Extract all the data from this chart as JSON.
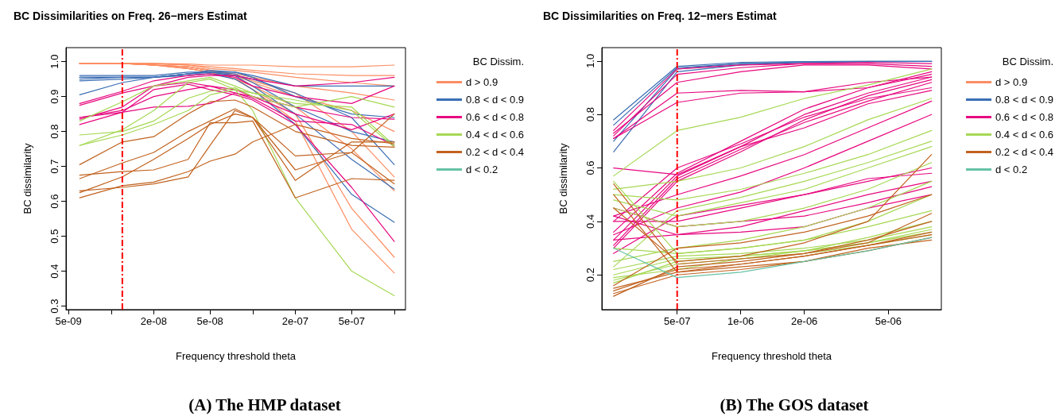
{
  "chart_data": [
    {
      "type": "line",
      "title": "BC Dissimilarities on Freq. 26−mers Estimat",
      "xlabel": "Frequency threshold theta",
      "ylabel": "BC dissimilarity",
      "legend_title": "BC Dissim.",
      "annotations": [
        "(A) The HMP dataset"
      ],
      "log": "x",
      "legend": "right",
      "marker": "none",
      "x": [
        6e-09,
        1.2e-08,
        2e-08,
        3.5e-08,
        5e-08,
        7.5e-08,
        1e-07,
        2e-07,
        5e-07,
        1e-06
      ],
      "xlim": [
        4.8e-09,
        1.2e-06
      ],
      "xticks": [
        {
          "value": 5e-09,
          "label": "5e-09"
        },
        {
          "value": 1e-08,
          "label": null
        },
        {
          "value": 2e-08,
          "label": "2e-08"
        },
        {
          "value": 5e-08,
          "label": "5e-08"
        },
        {
          "value": 1e-07,
          "label": null
        },
        {
          "value": 2e-07,
          "label": "2e-07"
        },
        {
          "value": 5e-07,
          "label": "5e-07"
        },
        {
          "value": 1e-06,
          "label": null
        }
      ],
      "ylim": [
        0.29,
        1.04
      ],
      "yticks": [
        0.3,
        0.4,
        0.5,
        0.6,
        0.7,
        0.8,
        0.9,
        {
          "value": 1,
          "label": "1.0"
        }
      ],
      "ref_lines": [
        {
          "axis": "x",
          "value": 1.2e-08,
          "color": "#ff0000",
          "line_style": "dashed"
        }
      ],
      "series": [
        {
          "name": "d > 0.9",
          "color": "#fc8d62",
          "values": [
            0.995,
            0.995,
            0.995,
            0.993,
            0.99,
            0.99,
            0.99,
            0.985,
            0.985,
            0.99
          ]
        },
        {
          "color": "#fc8d62",
          "values": [
            0.995,
            0.995,
            0.995,
            0.99,
            0.985,
            0.98,
            0.975,
            0.965,
            0.96,
            0.96
          ]
        },
        {
          "color": "#fc8d62",
          "values": [
            0.995,
            0.995,
            0.993,
            0.99,
            0.98,
            0.975,
            0.97,
            0.955,
            0.94,
            0.93
          ]
        },
        {
          "color": "#fc8d62",
          "values": [
            0.995,
            0.995,
            0.99,
            0.985,
            0.975,
            0.965,
            0.955,
            0.93,
            0.91,
            0.89
          ]
        },
        {
          "color": "#fc8d62",
          "values": [
            0.995,
            0.995,
            0.99,
            0.985,
            0.975,
            0.96,
            0.94,
            0.9,
            0.86,
            0.8
          ]
        },
        {
          "color": "#fc8d62",
          "values": [
            0.995,
            0.995,
            0.99,
            0.98,
            0.97,
            0.95,
            0.93,
            0.87,
            0.75,
            0.63
          ]
        },
        {
          "color": "#fc8d62",
          "values": [
            0.995,
            0.995,
            0.99,
            0.98,
            0.97,
            0.95,
            0.92,
            0.85,
            0.58,
            0.44
          ]
        },
        {
          "color": "#fc8d62",
          "values": [
            0.995,
            0.995,
            0.99,
            0.98,
            0.97,
            0.95,
            0.92,
            0.83,
            0.52,
            0.395
          ]
        },
        {
          "color": "#fc8d62",
          "values": [
            0.995,
            0.995,
            0.99,
            0.985,
            0.975,
            0.96,
            0.945,
            0.91,
            0.8,
            0.67
          ]
        },
        {
          "name": "0.8 < d < 0.9",
          "color": "#3b6eb4",
          "values": [
            0.95,
            0.955,
            0.955,
            0.965,
            0.97,
            0.97,
            0.96,
            0.93,
            0.93,
            0.93
          ]
        },
        {
          "color": "#3b6eb4",
          "values": [
            0.945,
            0.95,
            0.955,
            0.965,
            0.975,
            0.97,
            0.955,
            0.9,
            0.85,
            0.84
          ]
        },
        {
          "color": "#3b6eb4",
          "values": [
            0.96,
            0.96,
            0.96,
            0.97,
            0.97,
            0.965,
            0.94,
            0.87,
            0.8,
            0.77
          ]
        },
        {
          "color": "#3b6eb4",
          "values": [
            0.955,
            0.955,
            0.955,
            0.965,
            0.97,
            0.96,
            0.93,
            0.85,
            0.72,
            0.635
          ]
        },
        {
          "color": "#3b6eb4",
          "values": [
            0.905,
            0.94,
            0.955,
            0.965,
            0.965,
            0.95,
            0.92,
            0.82,
            0.62,
            0.54
          ]
        },
        {
          "color": "#3b6eb4",
          "values": [
            0.955,
            0.955,
            0.955,
            0.96,
            0.965,
            0.96,
            0.95,
            0.91,
            0.84,
            0.705
          ]
        },
        {
          "name": "0.6 < d < 0.8",
          "color": "#e7077f",
          "values": [
            0.84,
            0.855,
            0.87,
            0.872,
            0.88,
            0.91,
            0.9,
            0.87,
            0.84,
            0.835
          ]
        },
        {
          "color": "#e7077f",
          "values": [
            0.875,
            0.91,
            0.93,
            0.955,
            0.96,
            0.96,
            0.95,
            0.93,
            0.94,
            0.955
          ]
        },
        {
          "color": "#e7077f",
          "values": [
            0.88,
            0.915,
            0.945,
            0.96,
            0.965,
            0.955,
            0.93,
            0.9,
            0.88,
            0.93
          ]
        },
        {
          "color": "#e7077f",
          "values": [
            0.835,
            0.87,
            0.93,
            0.94,
            0.93,
            0.91,
            0.895,
            0.83,
            0.82,
            0.76
          ]
        },
        {
          "color": "#e7077f",
          "values": [
            0.82,
            0.855,
            0.92,
            0.935,
            0.92,
            0.905,
            0.89,
            0.82,
            0.64,
            0.485
          ]
        },
        {
          "color": "#e7077f",
          "values": [
            0.84,
            0.86,
            0.9,
            0.92,
            0.93,
            0.92,
            0.9,
            0.85,
            0.805,
            0.85
          ]
        },
        {
          "name": "0.4 < d < 0.6",
          "color": "#a6d854",
          "values": [
            0.76,
            0.805,
            0.86,
            0.94,
            0.95,
            0.92,
            0.86,
            0.61,
            0.4,
            0.33
          ]
        },
        {
          "color": "#a6d854",
          "values": [
            0.79,
            0.8,
            0.83,
            0.895,
            0.915,
            0.925,
            0.9,
            0.87,
            0.9,
            0.87
          ]
        },
        {
          "color": "#a6d854",
          "values": [
            0.76,
            0.79,
            0.82,
            0.86,
            0.905,
            0.92,
            0.91,
            0.88,
            0.87,
            0.76
          ]
        },
        {
          "color": "#a6d854",
          "values": [
            0.83,
            0.885,
            0.93,
            0.945,
            0.955,
            0.93,
            0.91,
            0.89,
            0.86,
            0.755
          ]
        },
        {
          "name": "0.2 < d < 0.4",
          "color": "#c1621f",
          "values": [
            0.705,
            0.77,
            0.785,
            0.85,
            0.885,
            0.89,
            0.87,
            0.8,
            0.76,
            0.755
          ]
        },
        {
          "color": "#c1621f",
          "values": [
            0.665,
            0.71,
            0.74,
            0.8,
            0.83,
            0.865,
            0.84,
            0.73,
            0.74,
            0.85
          ]
        },
        {
          "color": "#c1621f",
          "values": [
            0.675,
            0.685,
            0.69,
            0.72,
            0.825,
            0.825,
            0.83,
            0.61,
            0.665,
            0.66
          ]
        },
        {
          "color": "#c1621f",
          "values": [
            0.625,
            0.67,
            0.72,
            0.78,
            0.82,
            0.85,
            0.84,
            0.66,
            0.77,
            0.77
          ]
        },
        {
          "color": "#c1621f",
          "values": [
            0.61,
            0.645,
            0.655,
            0.685,
            0.715,
            0.735,
            0.77,
            0.82,
            0.78,
            0.765
          ]
        },
        {
          "color": "#c1621f",
          "values": [
            0.63,
            0.64,
            0.65,
            0.67,
            0.76,
            0.86,
            0.84,
            0.69,
            0.74,
            0.65
          ]
        },
        {
          "name": "d < 0.2",
          "color": "#66c2a5",
          "values": [
            null,
            null,
            null,
            null,
            null,
            null,
            null,
            null,
            null,
            null
          ]
        }
      ]
    },
    {
      "type": "line",
      "title": "BC Dissimilarities on Freq. 12−mers Estimat",
      "xlabel": "Frequency threshold theta",
      "ylabel": "BC dissimilarity",
      "legend_title": "BC Dissim.",
      "annotations": [
        "(B) The GOS dataset"
      ],
      "log": "x",
      "legend": "right",
      "marker": "none",
      "x": [
        2.5e-07,
        5e-07,
        1e-06,
        2e-06,
        4e-06,
        8e-06
      ],
      "xlim": [
        2.2e-07,
        8.9e-06
      ],
      "xticks": [
        {
          "value": 5e-07,
          "label": "5e-07"
        },
        {
          "value": 1e-06,
          "label": "1e-06"
        },
        {
          "value": 2e-06,
          "label": "2e-06"
        },
        {
          "value": 5e-06,
          "label": "5e-06"
        }
      ],
      "ylim": [
        0.07,
        1.05
      ],
      "yticks": [
        0.2,
        0.4,
        0.6,
        0.8,
        {
          "value": 1,
          "label": "1.0"
        }
      ],
      "ref_lines": [
        {
          "axis": "x",
          "value": 5e-07,
          "color": "#ff0000",
          "line_style": "dashed"
        }
      ],
      "series": [
        {
          "name": "d > 0.9",
          "color": "#fc8d62",
          "values": [
            null,
            null,
            null,
            null,
            null,
            null
          ]
        },
        {
          "name": "0.8 < d < 0.9",
          "color": "#3b6eb4",
          "values": [
            0.78,
            0.98,
            0.995,
            0.998,
            0.999,
            0.999
          ]
        },
        {
          "color": "#3b6eb4",
          "values": [
            0.76,
            0.975,
            0.99,
            0.997,
            0.998,
            0.998
          ]
        },
        {
          "color": "#3b6eb4",
          "values": [
            0.7,
            0.97,
            0.99,
            0.995,
            0.998,
            0.998
          ]
        },
        {
          "color": "#3b6eb4",
          "values": [
            0.66,
            0.96,
            0.985,
            0.995,
            0.997,
            0.998
          ]
        },
        {
          "name": "0.6 < d < 0.8",
          "color": "#e7077f",
          "values": [
            0.74,
            0.97,
            0.985,
            0.99,
            0.995,
            0.99
          ]
        },
        {
          "color": "#e7077f",
          "values": [
            0.72,
            0.95,
            0.975,
            0.99,
            0.99,
            0.98
          ]
        },
        {
          "color": "#e7077f",
          "values": [
            0.73,
            0.92,
            0.96,
            0.985,
            0.985,
            0.97
          ]
        },
        {
          "color": "#e7077f",
          "values": [
            0.71,
            0.88,
            0.89,
            0.885,
            0.9,
            0.95
          ]
        },
        {
          "color": "#e7077f",
          "values": [
            0.71,
            0.845,
            0.88,
            0.885,
            0.92,
            0.94
          ]
        },
        {
          "color": "#e7077f",
          "values": [
            0.3,
            0.55,
            0.66,
            0.78,
            0.87,
            0.93
          ]
        },
        {
          "color": "#e7077f",
          "values": [
            0.33,
            0.57,
            0.68,
            0.8,
            0.88,
            0.94
          ]
        },
        {
          "color": "#e7077f",
          "values": [
            0.36,
            0.58,
            0.7,
            0.82,
            0.9,
            0.96
          ]
        },
        {
          "color": "#e7077f",
          "values": [
            0.31,
            0.56,
            0.67,
            0.77,
            0.85,
            0.92
          ]
        },
        {
          "color": "#e7077f",
          "values": [
            0.4,
            0.6,
            0.69,
            0.79,
            0.86,
            0.9
          ]
        },
        {
          "color": "#e7077f",
          "values": [
            0.6,
            0.575,
            0.68,
            0.75,
            0.84,
            0.89
          ]
        },
        {
          "color": "#e7077f",
          "values": [
            0.42,
            0.5,
            0.57,
            0.65,
            0.75,
            0.85
          ]
        },
        {
          "color": "#e7077f",
          "values": [
            0.35,
            0.45,
            0.51,
            0.6,
            0.7,
            0.8
          ]
        },
        {
          "color": "#e7077f",
          "values": [
            0.4,
            0.4,
            0.45,
            0.5,
            0.55,
            0.6
          ]
        },
        {
          "color": "#e7077f",
          "values": [
            0.33,
            0.35,
            0.38,
            0.44,
            0.5,
            0.55
          ]
        },
        {
          "color": "#e7077f",
          "values": [
            0.42,
            0.35,
            0.36,
            0.38,
            0.45,
            0.5
          ]
        },
        {
          "color": "#e7077f",
          "values": [
            0.28,
            0.42,
            0.46,
            0.5,
            0.56,
            0.58
          ]
        },
        {
          "color": "#e7077f",
          "values": [
            0.45,
            0.38,
            0.4,
            0.42,
            0.47,
            0.53
          ]
        },
        {
          "name": "0.4 < d < 0.6",
          "color": "#a6d854",
          "values": [
            0.57,
            0.74,
            0.79,
            0.86,
            0.91,
            0.97
          ]
        },
        {
          "color": "#a6d854",
          "values": [
            0.52,
            0.55,
            0.6,
            0.68,
            0.78,
            0.86
          ]
        },
        {
          "color": "#a6d854",
          "values": [
            0.5,
            0.48,
            0.52,
            0.58,
            0.65,
            0.74
          ]
        },
        {
          "color": "#a6d854",
          "values": [
            0.48,
            0.42,
            0.47,
            0.52,
            0.6,
            0.68
          ]
        },
        {
          "color": "#a6d854",
          "values": [
            0.45,
            0.38,
            0.4,
            0.45,
            0.52,
            0.62
          ]
        },
        {
          "color": "#a6d854",
          "values": [
            0.55,
            0.28,
            0.3,
            0.33,
            0.4,
            0.5
          ]
        },
        {
          "color": "#a6d854",
          "values": [
            0.25,
            0.3,
            0.33,
            0.38,
            0.45,
            0.55
          ]
        },
        {
          "color": "#a6d854",
          "values": [
            0.22,
            0.27,
            0.28,
            0.3,
            0.33,
            0.38
          ]
        },
        {
          "color": "#a6d854",
          "values": [
            0.2,
            0.26,
            0.27,
            0.29,
            0.32,
            0.36
          ]
        },
        {
          "color": "#a6d854",
          "values": [
            0.18,
            0.24,
            0.26,
            0.28,
            0.31,
            0.35
          ]
        },
        {
          "color": "#a6d854",
          "values": [
            0.17,
            0.25,
            0.27,
            0.29,
            0.32,
            0.37
          ]
        },
        {
          "color": "#a6d854",
          "values": [
            0.3,
            0.28,
            0.3,
            0.33,
            0.38,
            0.44
          ]
        },
        {
          "color": "#a6d854",
          "values": [
            0.23,
            0.44,
            0.49,
            0.55,
            0.62,
            0.7
          ]
        },
        {
          "color": "#a6d854",
          "values": [
            0.19,
            0.22,
            0.26,
            0.29,
            0.34,
            0.4
          ]
        },
        {
          "name": "0.2 < d < 0.4",
          "color": "#c1621f",
          "values": [
            0.15,
            0.21,
            0.23,
            0.25,
            0.3,
            0.33
          ]
        },
        {
          "color": "#c1621f",
          "values": [
            0.13,
            0.2,
            0.22,
            0.25,
            0.29,
            0.34
          ]
        },
        {
          "color": "#c1621f",
          "values": [
            0.14,
            0.22,
            0.24,
            0.27,
            0.31,
            0.36
          ]
        },
        {
          "color": "#c1621f",
          "values": [
            0.54,
            0.24,
            0.26,
            0.28,
            0.33,
            0.4
          ]
        },
        {
          "color": "#c1621f",
          "values": [
            0.5,
            0.21,
            0.24,
            0.27,
            0.31,
            0.35
          ]
        },
        {
          "color": "#c1621f",
          "values": [
            0.16,
            0.3,
            0.32,
            0.36,
            0.42,
            0.5
          ]
        },
        {
          "color": "#c1621f",
          "values": [
            0.12,
            0.23,
            0.25,
            0.28,
            0.32,
            0.43
          ]
        },
        {
          "color": "#c1621f",
          "values": [
            0.45,
            0.25,
            0.27,
            0.32,
            0.4,
            0.65
          ]
        },
        {
          "name": "d < 0.2",
          "color": "#66c2a5",
          "values": [
            0.3,
            0.19,
            0.21,
            0.25,
            0.29,
            0.34
          ]
        }
      ]
    }
  ]
}
